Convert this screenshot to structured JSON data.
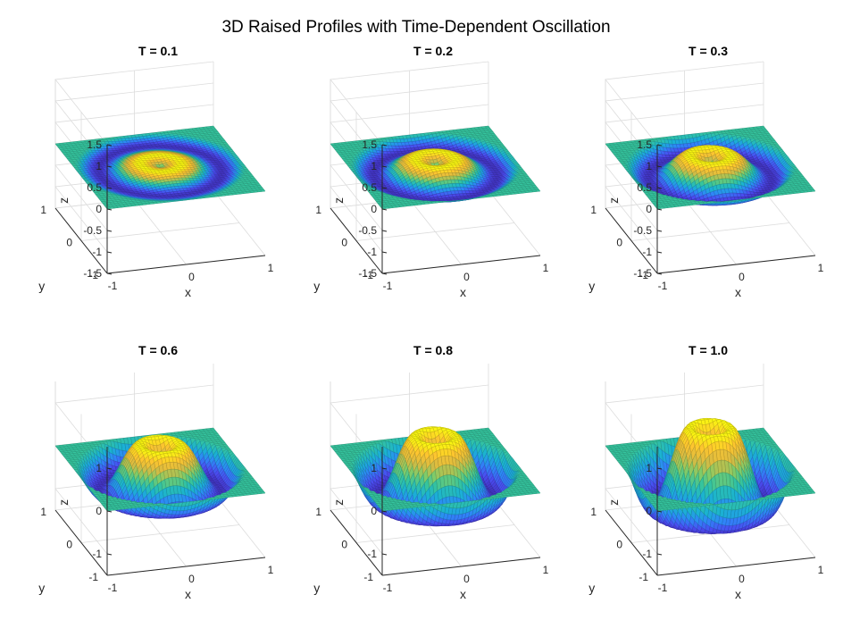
{
  "figure": {
    "title": "3D Raised Profiles with Time-Dependent Oscillation"
  },
  "colormap": [
    "#3e26a8",
    "#4a4bf0",
    "#2e87f7",
    "#1ab2d2",
    "#35c49e",
    "#84cb66",
    "#d7ba42",
    "#fdc52f",
    "#f9fb0e"
  ],
  "chart_data": [
    {
      "type": "surface",
      "title": "T = 0.1",
      "T": 0.1,
      "xlabel": "x",
      "ylabel": "y",
      "zlabel": "z",
      "xlim": [
        -1,
        1
      ],
      "ylim": [
        -1,
        1
      ],
      "zlim": [
        -1.5,
        1.5
      ],
      "xticks": [
        "-1",
        "0",
        "1"
      ],
      "yticks": [
        "-1",
        "0",
        "1"
      ],
      "zticks": [
        "-1.5",
        "-1",
        "-0.5",
        "0",
        "0.5",
        "1",
        "1.5"
      ],
      "surface": "z = T·sin(2πr)·cos(πr/2)^0.1, r = √(x²+y²)",
      "grid": true
    },
    {
      "type": "surface",
      "title": "T = 0.2",
      "T": 0.2,
      "xlabel": "x",
      "ylabel": "y",
      "zlabel": "z",
      "xlim": [
        -1,
        1
      ],
      "ylim": [
        -1,
        1
      ],
      "zlim": [
        -1.5,
        1.5
      ],
      "xticks": [
        "-1",
        "0",
        "1"
      ],
      "yticks": [
        "-1",
        "0",
        "1"
      ],
      "zticks": [
        "-1.5",
        "-1",
        "-0.5",
        "0",
        "0.5",
        "1",
        "1.5"
      ],
      "surface": "z = T·sin(2πr)·cos(πr/2)^0.1, r = √(x²+y²)",
      "grid": true
    },
    {
      "type": "surface",
      "title": "T = 0.3",
      "T": 0.3,
      "xlabel": "x",
      "ylabel": "y",
      "zlabel": "z",
      "xlim": [
        -1,
        1
      ],
      "ylim": [
        -1,
        1
      ],
      "zlim": [
        -1.5,
        1.5
      ],
      "xticks": [
        "-1",
        "0",
        "1"
      ],
      "yticks": [
        "-1",
        "0",
        "1"
      ],
      "zticks": [
        "-1.5",
        "-1",
        "-0.5",
        "0",
        "0.5",
        "1",
        "1.5"
      ],
      "surface": "z = T·sin(2πr)·cos(πr/2)^0.1, r = √(x²+y²)",
      "grid": true
    },
    {
      "type": "surface",
      "title": "T = 0.6",
      "T": 0.6,
      "xlabel": "x",
      "ylabel": "y",
      "zlabel": "z",
      "xlim": [
        -1,
        1
      ],
      "ylim": [
        -1,
        1
      ],
      "zlim": [
        -1.5,
        1.5
      ],
      "xticks": [
        "-1",
        "0",
        "1"
      ],
      "yticks": [
        "-1",
        "0",
        "1"
      ],
      "zticks": [
        "-1",
        "0",
        "1"
      ],
      "surface": "z = T·sin(2πr)·cos(πr/2)^0.1, r = √(x²+y²)",
      "grid": true
    },
    {
      "type": "surface",
      "title": "T = 0.8",
      "T": 0.8,
      "xlabel": "x",
      "ylabel": "y",
      "zlabel": "z",
      "xlim": [
        -1,
        1
      ],
      "ylim": [
        -1,
        1
      ],
      "zlim": [
        -1.5,
        1.5
      ],
      "xticks": [
        "-1",
        "0",
        "1"
      ],
      "yticks": [
        "-1",
        "0",
        "1"
      ],
      "zticks": [
        "-1",
        "0",
        "1"
      ],
      "surface": "z = T·sin(2πr)·cos(πr/2)^0.1, r = √(x²+y²)",
      "grid": true
    },
    {
      "type": "surface",
      "title": "T = 1.0",
      "T": 1.0,
      "xlabel": "x",
      "ylabel": "y",
      "zlabel": "z",
      "xlim": [
        -1,
        1
      ],
      "ylim": [
        -1,
        1
      ],
      "zlim": [
        -1.5,
        1.5
      ],
      "xticks": [
        "-1",
        "0",
        "1"
      ],
      "yticks": [
        "-1",
        "0",
        "1"
      ],
      "zticks": [
        "-1",
        "0",
        "1"
      ],
      "surface": "z = T·sin(2πr)·cos(πr/2)^0.1, r = √(x²+y²)",
      "grid": true
    }
  ]
}
